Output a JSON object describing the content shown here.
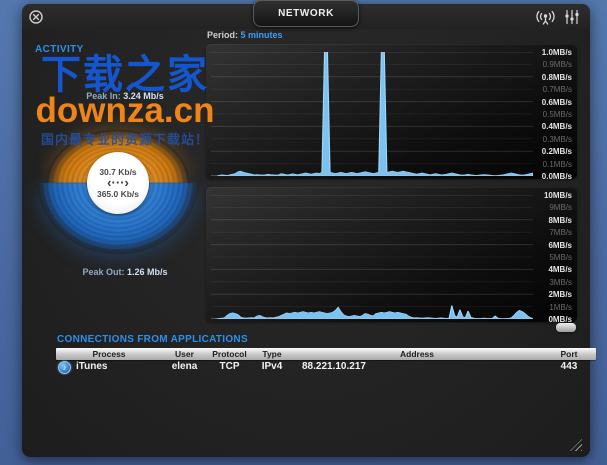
{
  "colors": {
    "desktop": "#4f6fa3",
    "accent_blue": "#3f9df5",
    "wave_blue": "#7cc2f0",
    "gauge_in_orange": "#e08a1c",
    "gauge_out_blue": "#2e7cd2",
    "watermark_blue": "#1456d0",
    "watermark_orange": "#ef8418"
  },
  "window": {
    "titlebar": {
      "tab_label": "NETWORK"
    },
    "activity": {
      "section_label": "ACTIVITY",
      "peak_in_label": "Peak In:",
      "peak_in_value": "3.24 Mb/s",
      "peak_out_label": "Peak Out:",
      "peak_out_value": "1.26 Mb/s",
      "gauge": {
        "in_rate": "30.7 Kb/s",
        "out_rate": "365.0 Kb/s",
        "transfer_glyph": "‹···›"
      }
    },
    "watermark": {
      "line1": "下载之家",
      "line2": "downza.cn",
      "line3": "国内最专业的资源下载站！"
    },
    "period": {
      "label": "Period:",
      "value": "5 minutes"
    },
    "connections": {
      "title": "CONNECTIONS FROM APPLICATIONS",
      "columns": [
        "Process",
        "User",
        "Protocol",
        "Type",
        "Address",
        "Port"
      ],
      "rows": [
        {
          "process": "iTunes",
          "user": "elena",
          "protocol": "TCP",
          "type": "IPv4",
          "address": "88.221.10.217",
          "port": "443"
        }
      ]
    }
  },
  "chart_data": [
    {
      "type": "area",
      "name": "incoming-traffic",
      "ylim": [
        0,
        1.0
      ],
      "ylabel": "MB/s",
      "grid": true,
      "legend_position": "none",
      "ytick_labels": [
        "1.0MB/s",
        "0.9MB/s",
        "0.8MB/s",
        "0.7MB/s",
        "0.6MB/s",
        "0.5MB/s",
        "0.4MB/s",
        "0.3MB/s",
        "0.2MB/s",
        "0.1MB/s",
        "0.0MB/s"
      ],
      "color": "#7cc2f0",
      "values": [
        0,
        0,
        0,
        0.005,
        0.01,
        0.008,
        0.005,
        0.01,
        0.015,
        0.02,
        0.035,
        0.04,
        0.03,
        0.025,
        0.02,
        0.015,
        0.01,
        0.012,
        0.01,
        0.008,
        0.01,
        0.015,
        0.012,
        0.01,
        0.008,
        0.01,
        0.02,
        0.015,
        0.01,
        0.012,
        0.018,
        0.015,
        0.01,
        0.015,
        0.02,
        0.025,
        0.02,
        0.015,
        0.02,
        0.025,
        0.02,
        0.03,
        1.05,
        1.05,
        0.03,
        0.025,
        0.02,
        0.025,
        0.03,
        0.025,
        0.02,
        0.025,
        0.03,
        0.025,
        0.02,
        0.025,
        0.03,
        0.035,
        0.03,
        0.025,
        0.02,
        0.025,
        0.03,
        1.05,
        1.05,
        0.03,
        0.035,
        0.04,
        0.035,
        0.03,
        0.035,
        0.04,
        0.035,
        0.03,
        0.025,
        0.02,
        0.015,
        0.02,
        0.025,
        0.02,
        0.015,
        0.01,
        0.015,
        0.02,
        0.015,
        0.01,
        0.012,
        0.015,
        0.02,
        0.025,
        0.02,
        0.015,
        0.01,
        0.008,
        0.01,
        0.015,
        0.01,
        0.008,
        0.005,
        0.008,
        0.01,
        0.012,
        0.01,
        0.008,
        0.005,
        0.004,
        0.005,
        0.008,
        0.01,
        0.015,
        0.02,
        0.025,
        0.02,
        0.015,
        0.01,
        0.008,
        0.01,
        0.015,
        0.02,
        0.025
      ]
    },
    {
      "type": "area",
      "name": "outgoing-traffic",
      "ylim": [
        0,
        10
      ],
      "ylabel": "MB/s",
      "grid": true,
      "legend_position": "none",
      "ytick_labels": [
        "10MB/s",
        "9MB/s",
        "8MB/s",
        "7MB/s",
        "6MB/s",
        "5MB/s",
        "4MB/s",
        "3MB/s",
        "2MB/s",
        "1MB/s",
        "0MB/s"
      ],
      "color": "#7cc2f0",
      "values": [
        0,
        0,
        0.02,
        0.05,
        0.08,
        0.1,
        0.3,
        0.45,
        0.5,
        0.45,
        0.35,
        0.15,
        0.1,
        0.08,
        0.1,
        0.12,
        0.1,
        0.25,
        0.3,
        0.2,
        0.12,
        0.1,
        0.12,
        0.1,
        0.15,
        0.2,
        0.3,
        0.4,
        0.5,
        0.45,
        0.5,
        0.55,
        0.5,
        0.55,
        0.6,
        0.55,
        0.5,
        0.55,
        0.5,
        0.55,
        0.6,
        0.55,
        0.5,
        0.45,
        0.5,
        0.55,
        0.7,
        0.95,
        0.6,
        0.35,
        0.25,
        0.2,
        0.25,
        0.3,
        0.25,
        0.2,
        0.3,
        0.45,
        0.4,
        0.3,
        0.25,
        0.45,
        0.5,
        0.55,
        0.5,
        0.55,
        0.6,
        0.55,
        0.5,
        0.55,
        0.5,
        0.45,
        0.4,
        0.25,
        0.15,
        0.1,
        0.12,
        0.1,
        0.08,
        0.1,
        0.12,
        0.1,
        0.08,
        0.06,
        0.08,
        0.1,
        0.08,
        0.06,
        0.08,
        1.1,
        0.3,
        0.15,
        0.75,
        0.2,
        0.1,
        0.65,
        0.15,
        0.08,
        0.06,
        0.05,
        0.06,
        0.08,
        0.06,
        0.05,
        0.06,
        0.25,
        0.08,
        0.05,
        0.04,
        0.05,
        0.06,
        0.1,
        0.3,
        0.55,
        0.7,
        0.6,
        0.45,
        0.25,
        0.12,
        0.05
      ]
    }
  ]
}
